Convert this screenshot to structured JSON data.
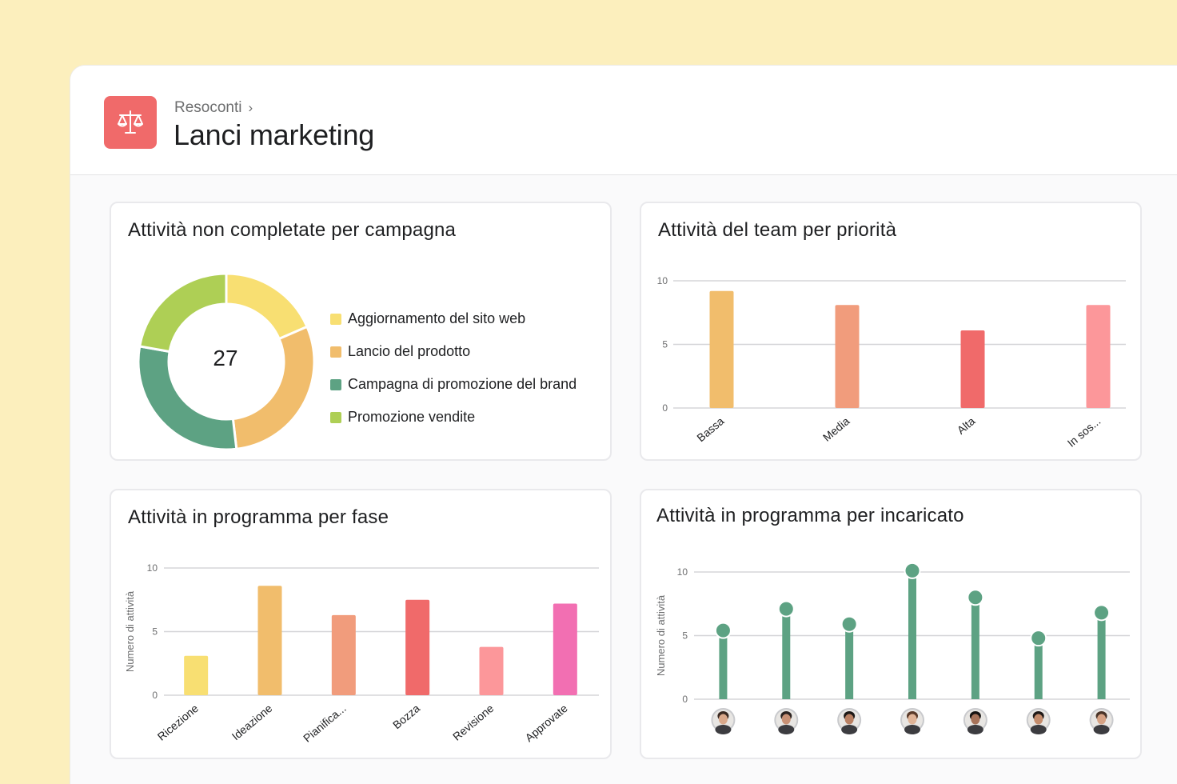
{
  "header": {
    "breadcrumb": "Resoconti",
    "title": "Lanci marketing",
    "icon": "scale-icon",
    "icon_color": "#f06a6a"
  },
  "cards": {
    "campaign": {
      "title": "Attività non completate per campagna"
    },
    "priority": {
      "title": "Attività del team per priorità"
    },
    "phase": {
      "title": "Attività in programma per fase"
    },
    "assignee": {
      "title": "Attività in programma per incaricato"
    }
  },
  "chart_data": [
    {
      "type": "pie",
      "variant": "donut",
      "title": "Attività non completate per campagna",
      "center_label": "27",
      "labels": [
        "Aggiornamento del sito web",
        "Lancio del prodotto",
        "Campagna di promozione del brand",
        "Promozione vendite"
      ],
      "values": [
        5,
        8,
        8,
        6
      ],
      "colors": [
        "#f8df72",
        "#f1bd6c",
        "#5da283",
        "#aecf55"
      ],
      "legend": "right"
    },
    {
      "type": "bar",
      "title": "Attività del team per priorità",
      "categories": [
        "Bassa",
        "Media",
        "Alta",
        "In sos..."
      ],
      "values": [
        9.2,
        8.1,
        6.1,
        8.1
      ],
      "colors": [
        "#f1bd6c",
        "#f19c7c",
        "#f06a6a",
        "#fc979a"
      ],
      "ylim": [
        0,
        10
      ],
      "yticks": [
        0,
        5,
        10
      ],
      "grid": true
    },
    {
      "type": "bar",
      "title": "Attività in programma per fase",
      "ylabel": "Numero di attività",
      "categories": [
        "Ricezione",
        "Ideazione",
        "Pianifica...",
        "Bozza",
        "Revisione",
        "Approvate"
      ],
      "values": [
        3.1,
        8.6,
        6.3,
        7.5,
        3.8,
        7.2
      ],
      "colors": [
        "#f8df72",
        "#f1bd6c",
        "#f19c7c",
        "#f06a6a",
        "#fc979a",
        "#f26fb2"
      ],
      "ylim": [
        0,
        10
      ],
      "yticks": [
        0,
        5,
        10
      ],
      "grid": true
    },
    {
      "type": "lollipop",
      "title": "Attività in programma per incaricato",
      "ylabel": "Numero di attività",
      "categories": [
        "avatar-1",
        "avatar-2",
        "avatar-3",
        "avatar-4",
        "avatar-5",
        "avatar-6",
        "avatar-7"
      ],
      "values": [
        5.4,
        7.1,
        5.9,
        10.1,
        8.0,
        4.8,
        6.8
      ],
      "color": "#5da283",
      "ylim": [
        0,
        10
      ],
      "yticks": [
        0,
        5,
        10
      ],
      "grid": true
    }
  ]
}
